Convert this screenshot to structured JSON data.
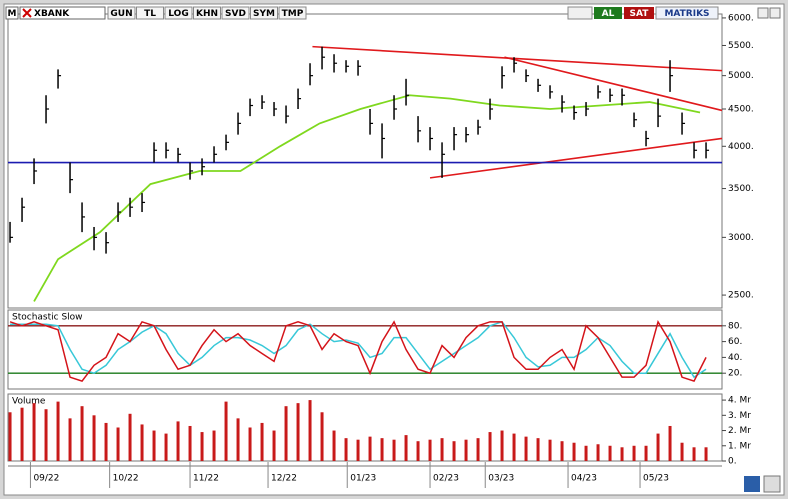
{
  "toolbar": {
    "logo": "M",
    "symbol": "XBANK",
    "buttons": [
      "GUN",
      "TL",
      "LOG",
      "KHN",
      "SVD",
      "SYM",
      "TMP"
    ],
    "buy": "AL",
    "sell": "SAT",
    "brand": "MATRIKS"
  },
  "chart_data": [
    {
      "type": "ohlc",
      "log": true,
      "xlim": [
        -0.17,
        59.33
      ],
      "ylim": [
        2400,
        6075
      ],
      "yticks": [
        {
          "value": 2500,
          "label": "2500."
        },
        {
          "value": 3000,
          "label": "3000."
        },
        {
          "value": 3500,
          "label": "3500."
        },
        {
          "value": 4000,
          "label": "4000."
        },
        {
          "value": 4500,
          "label": "4500."
        },
        {
          "value": 5000,
          "label": "5000."
        },
        {
          "value": 5500,
          "label": "5500."
        },
        {
          "value": 6000,
          "label": "6000."
        }
      ],
      "color": "#000000",
      "high": [
        3150,
        3400,
        3850,
        4700,
        5100,
        3800,
        3350,
        3100,
        3050,
        3350,
        3400,
        3450,
        4050,
        4050,
        3980,
        3800,
        3850,
        4000,
        4150,
        4450,
        4650,
        4700,
        4600,
        4550,
        4800,
        5200,
        5480,
        5350,
        5250,
        5250,
        4500,
        4300,
        4700,
        4950,
        4400,
        4250,
        4050,
        4250,
        4250,
        4350,
        4650,
        5150,
        5300,
        5100,
        4950,
        4850,
        4700,
        4550,
        4600,
        4850,
        4800,
        4800,
        4450,
        4200,
        4650,
        5250,
        4450,
        4050,
        4050
      ],
      "low": [
        2950,
        3150,
        3550,
        4300,
        4800,
        3450,
        3050,
        2880,
        2850,
        3150,
        3200,
        3250,
        3800,
        3850,
        3800,
        3600,
        3650,
        3800,
        3950,
        4150,
        4400,
        4500,
        4400,
        4300,
        4500,
        4850,
        5100,
        5050,
        5050,
        5000,
        4150,
        3850,
        4350,
        4550,
        4050,
        3950,
        3620,
        3950,
        4050,
        4150,
        4350,
        4800,
        5050,
        4900,
        4750,
        4650,
        4450,
        4350,
        4400,
        4650,
        4600,
        4550,
        4250,
        4000,
        4250,
        4750,
        4150,
        3850,
        3850
      ],
      "close": [
        3000,
        3300,
        3700,
        4500,
        5000,
        3600,
        3200,
        3000,
        2950,
        3250,
        3300,
        3350,
        3950,
        3950,
        3900,
        3700,
        3750,
        3900,
        4050,
        4300,
        4550,
        4600,
        4500,
        4400,
        4650,
        5000,
        5300,
        5200,
        5150,
        5150,
        4300,
        4100,
        4500,
        4700,
        4200,
        4100,
        3900,
        4150,
        4150,
        4250,
        4500,
        5000,
        5200,
        5000,
        4850,
        4750,
        4600,
        4450,
        4500,
        4750,
        4700,
        4700,
        4350,
        4100,
        4400,
        5000,
        4300,
        3950,
        3950
      ],
      "ma": {
        "color": "#7fd81e",
        "x": [
          2,
          4,
          7.5,
          11.7,
          15.8,
          19.2,
          22.5,
          25.8,
          29.2,
          33.3,
          36.7,
          40.8,
          45,
          49.2,
          53.3,
          57.5
        ],
        "values": [
          2450,
          2800,
          3050,
          3550,
          3700,
          3700,
          4000,
          4300,
          4500,
          4700,
          4650,
          4550,
          4500,
          4550,
          4600,
          4450
        ]
      },
      "lines": [
        {
          "color": "#e0191c",
          "x": [
            25.2,
            59.33
          ],
          "y": [
            5480,
            5080
          ]
        },
        {
          "color": "#e0191c",
          "x": [
            41.2,
            59.33
          ],
          "y": [
            5300,
            4480
          ]
        },
        {
          "color": "#e0191c",
          "x": [
            35,
            59.33
          ],
          "y": [
            3620,
            4100
          ]
        },
        {
          "color": "#1b1bb0",
          "x": [
            -0.17,
            59.33
          ],
          "y": [
            3800,
            3800
          ]
        }
      ]
    },
    {
      "type": "line",
      "title": "Stochastic Slow",
      "xlim": [
        -0.17,
        59.33
      ],
      "ylim": [
        0,
        100
      ],
      "yticks": [
        {
          "value": 20,
          "label": "20."
        },
        {
          "value": 40,
          "label": "40."
        },
        {
          "value": 60,
          "label": "60."
        },
        {
          "value": 80,
          "label": "80."
        }
      ],
      "levels": [
        {
          "value": 80,
          "color": "#8b1a1a"
        },
        {
          "value": 20,
          "color": "#1a7a1a"
        }
      ],
      "series": [
        {
          "color": "#d4141a",
          "values": [
            85,
            80,
            85,
            80,
            75,
            15,
            10,
            30,
            40,
            70,
            60,
            85,
            80,
            50,
            25,
            30,
            55,
            75,
            60,
            70,
            55,
            45,
            35,
            80,
            85,
            80,
            50,
            70,
            60,
            55,
            20,
            60,
            85,
            50,
            25,
            20,
            55,
            40,
            65,
            80,
            85,
            85,
            40,
            25,
            25,
            40,
            50,
            25,
            80,
            65,
            40,
            15,
            15,
            30,
            85,
            60,
            15,
            10,
            40
          ]
        },
        {
          "color": "#38c8d8",
          "values": [
            82,
            82,
            82,
            82,
            80,
            50,
            25,
            20,
            30,
            50,
            60,
            72,
            80,
            70,
            45,
            30,
            40,
            55,
            65,
            65,
            62,
            55,
            45,
            55,
            75,
            82,
            70,
            60,
            62,
            58,
            40,
            45,
            65,
            65,
            45,
            25,
            35,
            45,
            55,
            65,
            80,
            85,
            65,
            40,
            28,
            30,
            40,
            40,
            50,
            65,
            55,
            35,
            20,
            20,
            45,
            70,
            40,
            15,
            25
          ]
        }
      ]
    },
    {
      "type": "bar",
      "title": "Volume",
      "xlim": [
        -0.17,
        59.33
      ],
      "ylim": [
        0,
        4.4
      ],
      "color": "#c81a1a",
      "yticks": [
        {
          "value": 0,
          "label": "0."
        },
        {
          "value": 1,
          "label": "1. Mr"
        },
        {
          "value": 2,
          "label": "2. Mr"
        },
        {
          "value": 3,
          "label": "3. Mr"
        },
        {
          "value": 4,
          "label": "4. Mr"
        }
      ],
      "xticks": [
        {
          "value": 1.7,
          "label": "09/22"
        },
        {
          "value": 8.3,
          "label": "10/22"
        },
        {
          "value": 15,
          "label": "11/22"
        },
        {
          "value": 21.5,
          "label": "12/22"
        },
        {
          "value": 28.1,
          "label": "01/23"
        },
        {
          "value": 35,
          "label": "02/23"
        },
        {
          "value": 39.6,
          "label": "03/23"
        },
        {
          "value": 46.5,
          "label": "04/23"
        },
        {
          "value": 52.5,
          "label": "05/23"
        }
      ],
      "values": [
        3.2,
        3.5,
        3.8,
        3.4,
        3.9,
        2.8,
        3.6,
        3.0,
        2.5,
        2.2,
        3.1,
        2.4,
        2.0,
        1.8,
        2.6,
        2.3,
        1.9,
        2.0,
        3.9,
        2.8,
        2.2,
        2.5,
        2.0,
        3.6,
        3.8,
        4.0,
        3.2,
        2.0,
        1.5,
        1.4,
        1.6,
        1.5,
        1.4,
        1.7,
        1.3,
        1.4,
        1.5,
        1.3,
        1.4,
        1.5,
        1.9,
        2.0,
        1.8,
        1.6,
        1.5,
        1.4,
        1.3,
        1.2,
        1.0,
        1.1,
        1.0,
        0.9,
        1.0,
        1.0,
        1.8,
        2.3,
        1.2,
        0.9,
        0.9
      ]
    }
  ]
}
